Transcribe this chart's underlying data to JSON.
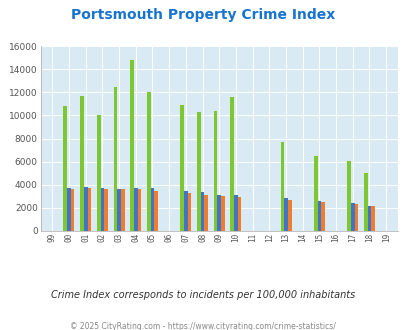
{
  "title": "Portsmouth Property Crime Index",
  "years": [
    "99",
    "00",
    "01",
    "02",
    "03",
    "04",
    "05",
    "06",
    "07",
    "08",
    "09",
    "10",
    "11",
    "12",
    "13",
    "14",
    "15",
    "16",
    "17",
    "18",
    "19"
  ],
  "full_years": [
    1999,
    2000,
    2001,
    2002,
    2003,
    2004,
    2005,
    2006,
    2007,
    2008,
    2009,
    2010,
    2011,
    2012,
    2013,
    2014,
    2015,
    2016,
    2017,
    2018,
    2019
  ],
  "portsmouth": [
    0,
    10800,
    11700,
    10000,
    12500,
    14800,
    12000,
    0,
    10900,
    10300,
    10350,
    11600,
    0,
    0,
    7700,
    0,
    6500,
    0,
    6050,
    5000,
    0
  ],
  "ohio": [
    0,
    3700,
    3850,
    3700,
    3600,
    3750,
    3700,
    0,
    3450,
    3400,
    3100,
    3100,
    0,
    0,
    2900,
    0,
    2600,
    0,
    2400,
    2200,
    0
  ],
  "national": [
    0,
    3650,
    3700,
    3650,
    3600,
    3600,
    3450,
    0,
    3300,
    3100,
    3050,
    2950,
    0,
    0,
    2700,
    0,
    2500,
    0,
    2350,
    2200,
    0
  ],
  "portsmouth_color": "#7dc832",
  "ohio_color": "#4472c4",
  "national_color": "#ed7d31",
  "plot_bg_color": "#daeaf5",
  "ylim": [
    0,
    16000
  ],
  "yticks": [
    0,
    2000,
    4000,
    6000,
    8000,
    10000,
    12000,
    14000,
    16000
  ],
  "subtitle": "Crime Index corresponds to incidents per 100,000 inhabitants",
  "footer": "© 2025 CityRating.com - https://www.cityrating.com/crime-statistics/",
  "title_color": "#1874cd",
  "subtitle_color": "#333333",
  "footer_color": "#888888"
}
